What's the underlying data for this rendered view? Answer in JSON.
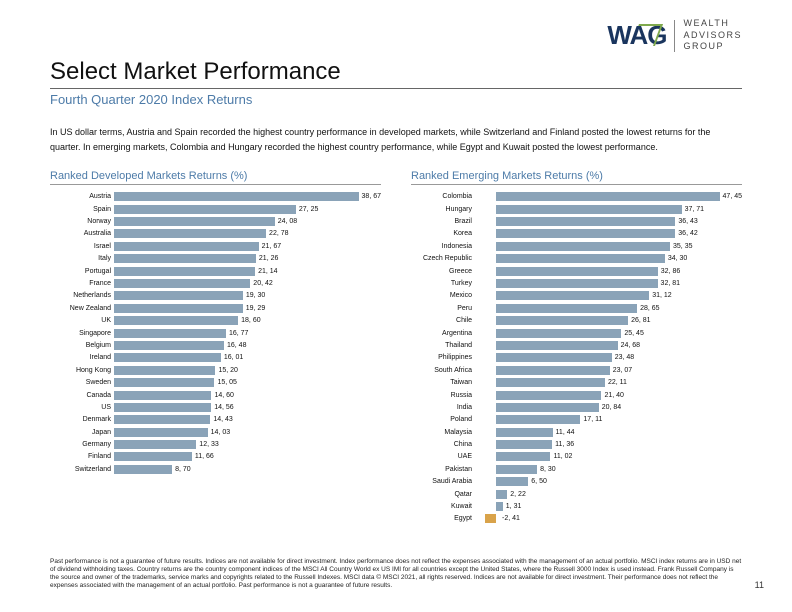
{
  "logo": {
    "mark": "WAG",
    "text_line1": "WEALTH",
    "text_line2": "ADVISORS",
    "text_line3": "GROUP"
  },
  "title": "Select Market Performance",
  "subtitle": "Fourth Quarter 2020 Index Returns",
  "intro": "In US dollar terms, Austria and Spain recorded the highest country performance in developed markets, while Switzerland and Finland posted the lowest returns for the quarter. In emerging markets, Colombia and Hungary recorded the highest country performance, while Egypt and Kuwait posted the lowest performance.",
  "chart_developed": {
    "title": "Ranked Developed Markets Returns (%)",
    "bar_color": "#8aa3b8",
    "max": 40,
    "rows": [
      {
        "label": "Austria",
        "value": 38.67,
        "disp": "38, 67"
      },
      {
        "label": "Spain",
        "value": 27.25,
        "disp": "27, 25"
      },
      {
        "label": "Norway",
        "value": 24.08,
        "disp": "24, 08"
      },
      {
        "label": "Australia",
        "value": 22.78,
        "disp": "22, 78"
      },
      {
        "label": "Israel",
        "value": 21.67,
        "disp": "21, 67"
      },
      {
        "label": "Italy",
        "value": 21.26,
        "disp": "21, 26"
      },
      {
        "label": "Portugal",
        "value": 21.14,
        "disp": "21, 14"
      },
      {
        "label": "France",
        "value": 20.42,
        "disp": "20, 42"
      },
      {
        "label": "Netherlands",
        "value": 19.3,
        "disp": "19, 30"
      },
      {
        "label": "New Zealand",
        "value": 19.29,
        "disp": "19, 29"
      },
      {
        "label": "UK",
        "value": 18.6,
        "disp": "18, 60"
      },
      {
        "label": "Singapore",
        "value": 16.77,
        "disp": "16, 77"
      },
      {
        "label": "Belgium",
        "value": 16.48,
        "disp": "16, 48"
      },
      {
        "label": "Ireland",
        "value": 16.01,
        "disp": "16, 01"
      },
      {
        "label": "Hong Kong",
        "value": 15.2,
        "disp": "15, 20"
      },
      {
        "label": "Sweden",
        "value": 15.05,
        "disp": "15, 05"
      },
      {
        "label": "Canada",
        "value": 14.6,
        "disp": "14, 60"
      },
      {
        "label": "US",
        "value": 14.56,
        "disp": "14, 56"
      },
      {
        "label": "Denmark",
        "value": 14.43,
        "disp": "14, 43"
      },
      {
        "label": "Japan",
        "value": 14.03,
        "disp": "14, 03"
      },
      {
        "label": "Germany",
        "value": 12.33,
        "disp": "12, 33"
      },
      {
        "label": "Finland",
        "value": 11.66,
        "disp": "11, 66"
      },
      {
        "label": "Switzerland",
        "value": 8.7,
        "disp": "8, 70"
      }
    ]
  },
  "chart_emerging": {
    "title": "Ranked Emerging Markets Returns (%)",
    "bar_color": "#8aa3b8",
    "neg_color": "#d9a34a",
    "max": 50,
    "origin_pct": 8,
    "rows": [
      {
        "label": "Colombia",
        "value": 47.45,
        "disp": "47, 45"
      },
      {
        "label": "Hungary",
        "value": 37.71,
        "disp": "37, 71"
      },
      {
        "label": "Brazil",
        "value": 36.43,
        "disp": "36, 43"
      },
      {
        "label": "Korea",
        "value": 36.42,
        "disp": "36, 42"
      },
      {
        "label": "Indonesia",
        "value": 35.35,
        "disp": "35, 35"
      },
      {
        "label": "Czech Republic",
        "value": 34.3,
        "disp": "34, 30"
      },
      {
        "label": "Greece",
        "value": 32.86,
        "disp": "32, 86"
      },
      {
        "label": "Turkey",
        "value": 32.81,
        "disp": "32, 81"
      },
      {
        "label": "Mexico",
        "value": 31.12,
        "disp": "31, 12"
      },
      {
        "label": "Peru",
        "value": 28.65,
        "disp": "28, 65"
      },
      {
        "label": "Chile",
        "value": 26.81,
        "disp": "26, 81"
      },
      {
        "label": "Argentina",
        "value": 25.45,
        "disp": "25, 45"
      },
      {
        "label": "Thailand",
        "value": 24.68,
        "disp": "24, 68"
      },
      {
        "label": "Philippines",
        "value": 23.48,
        "disp": "23, 48"
      },
      {
        "label": "South Africa",
        "value": 23.07,
        "disp": "23, 07"
      },
      {
        "label": "Taiwan",
        "value": 22.11,
        "disp": "22, 11"
      },
      {
        "label": "Russia",
        "value": 21.4,
        "disp": "21, 40"
      },
      {
        "label": "India",
        "value": 20.84,
        "disp": "20, 84"
      },
      {
        "label": "Poland",
        "value": 17.11,
        "disp": "17, 11"
      },
      {
        "label": "Malaysia",
        "value": 11.44,
        "disp": "11, 44"
      },
      {
        "label": "China",
        "value": 11.36,
        "disp": "11, 36"
      },
      {
        "label": "UAE",
        "value": 11.02,
        "disp": "11, 02"
      },
      {
        "label": "Pakistan",
        "value": 8.3,
        "disp": "8, 30"
      },
      {
        "label": "Saudi Arabia",
        "value": 6.5,
        "disp": "6, 50"
      },
      {
        "label": "Qatar",
        "value": 2.22,
        "disp": "2, 22"
      },
      {
        "label": "Kuwait",
        "value": 1.31,
        "disp": "1, 31"
      },
      {
        "label": "Egypt",
        "value": -2.41,
        "disp": "-2, 41"
      }
    ]
  },
  "footnote": "Past performance is not a guarantee of future results. Indices are not available for direct investment. Index performance does not reflect the expenses associated with the management of an actual portfolio. MSCI index returns are in USD net of dividend withholding taxes. Country returns are the country component indices of the MSCI All Country World ex US IMI for all countries except the United States, where the Russell 3000 Index is used instead. Frank Russell Company is the source and owner of the trademarks, service marks and copyrights related to the Russell Indexes. MSCI data © MSCI 2021, all rights reserved. Indices are not available for direct investment. Their performance does not reflect the expenses associated with the management of an actual portfolio. Past performance is not a guarantee of future results.",
  "page_number": "11"
}
